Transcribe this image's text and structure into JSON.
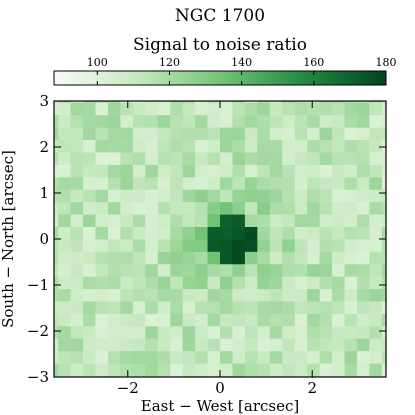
{
  "chart_data": {
    "type": "heatmap",
    "title": "NGC 1700",
    "colorbar_label": "Signal to noise ratio",
    "colorbar_range": [
      88,
      180
    ],
    "colorbar_ticks": [
      100,
      120,
      140,
      160,
      180
    ],
    "colormap": [
      "#f7fcf5",
      "#c7e9c0",
      "#74c476",
      "#238b45",
      "#00441b"
    ],
    "xlabel": "East − West [arcsec]",
    "ylabel": "South − North [arcsec]",
    "xlim": [
      -3.6,
      3.6
    ],
    "ylim": [
      -3.0,
      3.0
    ],
    "xticks": [
      -2,
      0,
      2
    ],
    "xtick_labels": [
      "−2",
      "0",
      "2"
    ],
    "yticks": [
      -3,
      -2,
      -1,
      0,
      1,
      2,
      3
    ],
    "ytick_labels": [
      "−3",
      "−2",
      "−1",
      "0",
      "1",
      "2",
      "3"
    ],
    "grid": false,
    "cell_size_arcsec": 0.27,
    "center_x_arcsec": 0.27,
    "center_y_arcsec": 0.0,
    "central_sn_peak": 178,
    "outer_sn_minimum": 92
  }
}
